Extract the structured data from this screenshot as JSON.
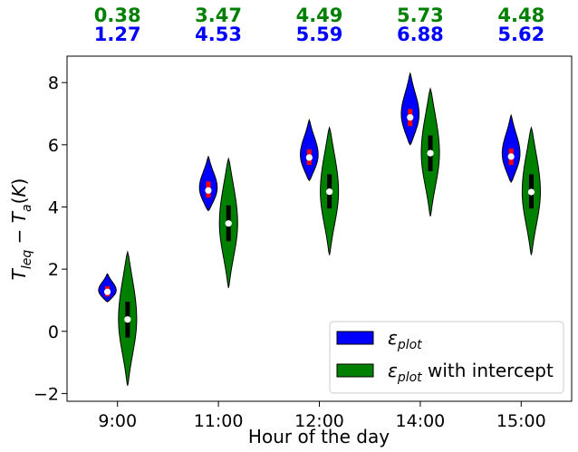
{
  "chart_data": {
    "type": "violin",
    "title": "",
    "xlabel": "Hour of the day",
    "ylabel": "T_leq − T_a (K)",
    "ylim": [
      -2.25,
      8.85
    ],
    "yticks": [
      -2,
      0,
      2,
      4,
      6,
      8
    ],
    "ytick_labels": [
      "−2",
      "0",
      "2",
      "4",
      "6",
      "8"
    ],
    "categories": [
      "9:00",
      "11:00",
      "12:00",
      "14:00",
      "15:00"
    ],
    "legend_position": "lower-right",
    "series": [
      {
        "name": "ε_plot",
        "name_main": "ε",
        "name_sub": "plot",
        "name_suffix": "",
        "color": "#0000ff",
        "box_color": "#ff0000",
        "medians": [
          1.27,
          4.53,
          5.59,
          6.88,
          5.62
        ],
        "mins": [
          0.95,
          3.88,
          4.85,
          6.0,
          4.8
        ],
        "maxs": [
          1.85,
          5.62,
          6.8,
          8.3,
          6.95
        ],
        "q1": [
          1.12,
          4.3,
          5.35,
          6.6,
          5.35
        ],
        "q3": [
          1.45,
          4.82,
          5.85,
          7.15,
          5.88
        ],
        "top_labels": [
          "1.27",
          "4.53",
          "5.59",
          "6.88",
          "5.62"
        ]
      },
      {
        "name": "ε_plot with intercept",
        "name_main": "ε",
        "name_sub": "plot",
        "name_suffix": " with intercept",
        "color": "#008000",
        "box_color": "#000000",
        "medians": [
          0.38,
          3.47,
          4.49,
          5.73,
          4.48
        ],
        "mins": [
          -1.75,
          1.4,
          2.45,
          3.7,
          2.45
        ],
        "maxs": [
          2.55,
          5.55,
          6.55,
          7.8,
          6.55
        ],
        "q1": [
          -0.2,
          2.9,
          3.95,
          5.15,
          3.95
        ],
        "q3": [
          0.95,
          4.05,
          5.05,
          6.3,
          5.05
        ],
        "top_labels": [
          "0.38",
          "3.47",
          "4.49",
          "5.73",
          "4.48"
        ]
      }
    ]
  }
}
